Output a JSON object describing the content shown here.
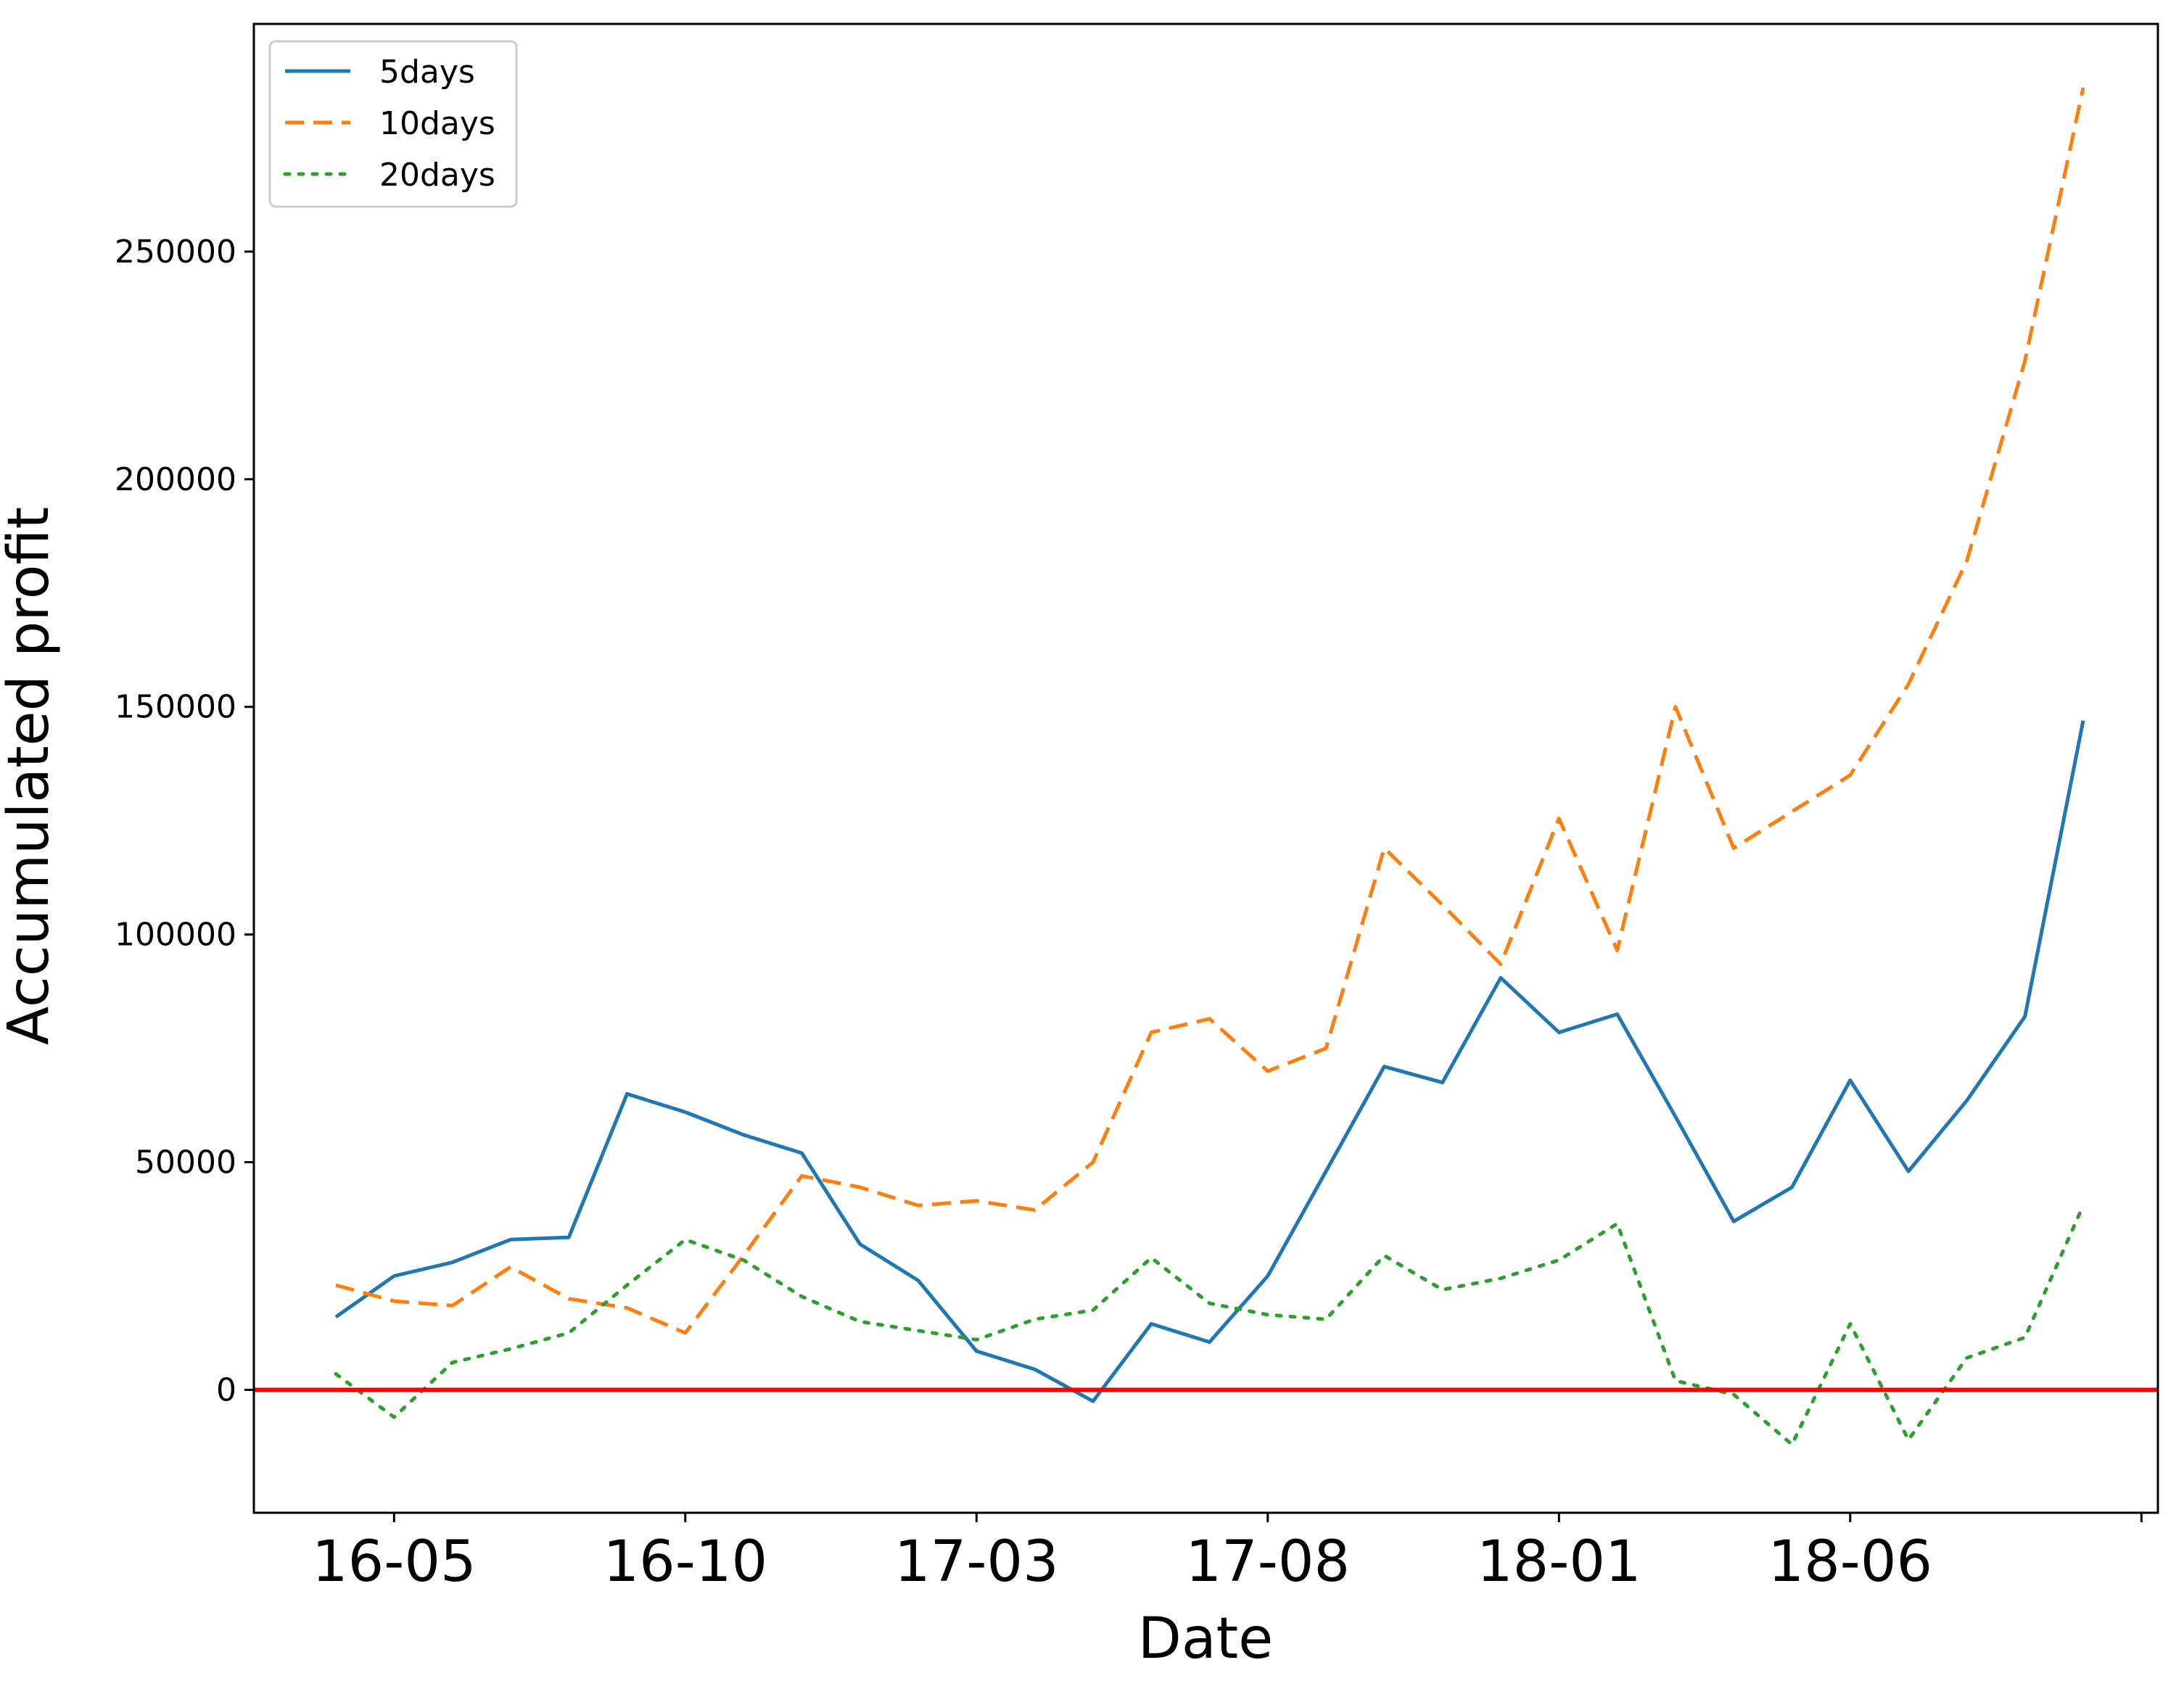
{
  "chart_data": {
    "type": "line",
    "title": "",
    "xlabel": "Date",
    "ylabel": "Accumulated profit",
    "x_ticks": [
      "16-05",
      "16-10",
      "17-03",
      "17-08",
      "18-01",
      "18-06"
    ],
    "y_ticks": [
      0,
      50000,
      100000,
      150000,
      200000,
      250000
    ],
    "ylim": [
      -27000,
      300000
    ],
    "grid": false,
    "legend_position": "top-left",
    "x": [
      "16-04",
      "16-05",
      "16-06",
      "16-07",
      "16-08",
      "16-09",
      "16-10",
      "16-11",
      "16-12",
      "17-01",
      "17-02",
      "17-03",
      "17-04",
      "17-05",
      "17-06",
      "17-07",
      "17-08",
      "17-09",
      "17-10",
      "17-11",
      "17-12",
      "18-01",
      "18-02",
      "18-03",
      "18-04",
      "18-05",
      "18-06",
      "18-07",
      "18-08",
      "18-09",
      "18-10"
    ],
    "series": [
      {
        "name": "5days",
        "color": "#1f77b4",
        "style": "solid",
        "values": [
          16000,
          25000,
          28000,
          33000,
          33500,
          65000,
          61000,
          56000,
          52000,
          32000,
          24000,
          8500,
          4500,
          -2500,
          14500,
          10500,
          25000,
          48000,
          71000,
          67500,
          90500,
          78500,
          82500,
          60000,
          37000,
          44500,
          68000,
          48000,
          63500,
          82000,
          147000
        ]
      },
      {
        "name": "10days",
        "color": "#ff7f0e",
        "style": "dashed",
        "values": [
          23000,
          19500,
          18500,
          27000,
          20000,
          18000,
          12500,
          29500,
          47000,
          44500,
          40500,
          41500,
          39500,
          50000,
          78500,
          81500,
          70000,
          75000,
          119000,
          106500,
          93500,
          125500,
          96500,
          150000,
          119000,
          127000,
          135000,
          155000,
          182000,
          226000,
          286000
        ]
      },
      {
        "name": "20days",
        "color": "#2ca02c",
        "style": "dotted",
        "values": [
          3500,
          -6000,
          6000,
          9000,
          12500,
          23000,
          33000,
          28500,
          20500,
          15000,
          13000,
          11000,
          15500,
          17500,
          29000,
          19000,
          16500,
          15500,
          29500,
          22000,
          24500,
          28500,
          36500,
          2000,
          -1000,
          -12000,
          14500,
          -11000,
          7000,
          11500,
          40500
        ]
      }
    ],
    "reference_line": {
      "y": 0,
      "color": "#ff0000"
    }
  }
}
